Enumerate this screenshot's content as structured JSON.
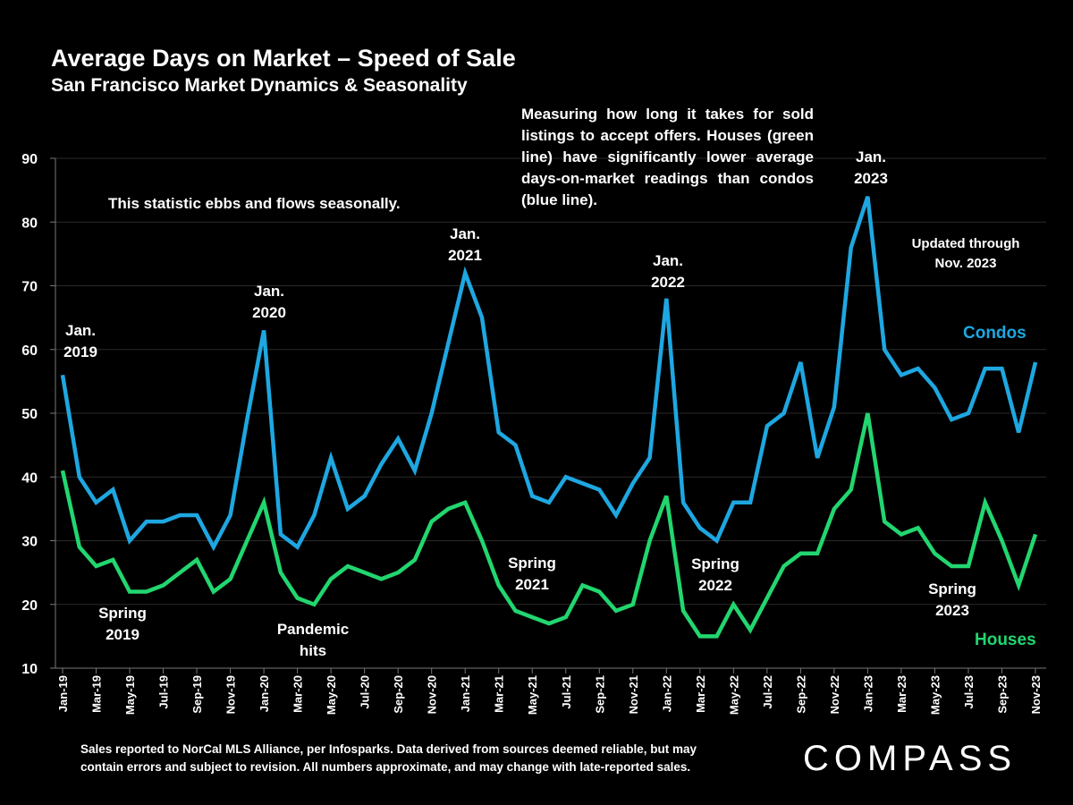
{
  "header": {
    "title": "Average Days on Market – Speed of Sale",
    "subtitle": "San Francisco Market Dynamics & Seasonality"
  },
  "description": "Measuring how long it takes for sold listings to accept offers. Houses (green line) have significantly lower average days-on-market readings than condos (blue line).",
  "annotations": {
    "seasonal": "This statistic ebbs and flows seasonally.",
    "jan2019": [
      "Jan.",
      "2019"
    ],
    "jan2020": [
      "Jan.",
      "2020"
    ],
    "jan2021": [
      "Jan.",
      "2021"
    ],
    "jan2022": [
      "Jan.",
      "2022"
    ],
    "jan2023": [
      "Jan.",
      "2023"
    ],
    "spring2019": [
      "Spring",
      "2019"
    ],
    "pandemic": [
      "Pandemic",
      "hits"
    ],
    "spring2021": [
      "Spring",
      "2021"
    ],
    "spring2022": [
      "Spring",
      "2022"
    ],
    "spring2023": [
      "Spring",
      "2023"
    ],
    "updated": [
      "Updated through",
      "Nov. 2023"
    ]
  },
  "footer": {
    "line1": "Sales reported to NorCal MLS Alliance, per Infosparks. Data derived from sources deemed reliable, but may",
    "line2": "contain errors and subject to revision. All numbers approximate, and may change with late-reported sales."
  },
  "logo": "COMPASS",
  "chart_data": {
    "type": "line",
    "title": "Average Days on Market – Speed of Sale",
    "xlabel": "",
    "ylabel": "",
    "ylim": [
      10,
      90
    ],
    "yticks": [
      10,
      20,
      30,
      40,
      50,
      60,
      70,
      80,
      90
    ],
    "grid": true,
    "legend": "right (inline labels)",
    "x": [
      "Jan-19",
      "Feb-19",
      "Mar-19",
      "Apr-19",
      "May-19",
      "Jun-19",
      "Jul-19",
      "Aug-19",
      "Sep-19",
      "Oct-19",
      "Nov-19",
      "Dec-19",
      "Jan-20",
      "Feb-20",
      "Mar-20",
      "Apr-20",
      "May-20",
      "Jun-20",
      "Jul-20",
      "Aug-20",
      "Sep-20",
      "Oct-20",
      "Nov-20",
      "Dec-20",
      "Jan-21",
      "Feb-21",
      "Mar-21",
      "Apr-21",
      "May-21",
      "Jun-21",
      "Jul-21",
      "Aug-21",
      "Sep-21",
      "Oct-21",
      "Nov-21",
      "Dec-21",
      "Jan-22",
      "Feb-22",
      "Mar-22",
      "Apr-22",
      "May-22",
      "Jun-22",
      "Jul-22",
      "Aug-22",
      "Sep-22",
      "Oct-22",
      "Nov-22",
      "Dec-22",
      "Jan-23",
      "Feb-23",
      "Mar-23",
      "Apr-23",
      "May-23",
      "Jun-23",
      "Jul-23",
      "Aug-23",
      "Sep-23",
      "Oct-23",
      "Nov-23"
    ],
    "xtick_labels": [
      "Jan-19",
      "Mar-19",
      "May-19",
      "Jul-19",
      "Sep-19",
      "Nov-19",
      "Jan-20",
      "Mar-20",
      "May-20",
      "Jul-20",
      "Sep-20",
      "Nov-20",
      "Jan-21",
      "Mar-21",
      "May-21",
      "Jul-21",
      "Sep-21",
      "Nov-21",
      "Jan-22",
      "Mar-22",
      "May-22",
      "Jul-22",
      "Sep-22",
      "Nov-22",
      "Jan-23",
      "Mar-23",
      "May-23",
      "Jul-23",
      "Sep-23",
      "Nov-23"
    ],
    "series": [
      {
        "name": "Condos",
        "color": "#1ea7e1",
        "values": [
          56,
          40,
          36,
          38,
          30,
          33,
          33,
          34,
          34,
          29,
          34,
          49,
          63,
          31,
          29,
          34,
          43,
          35,
          37,
          42,
          46,
          41,
          50,
          61,
          72,
          65,
          47,
          45,
          37,
          36,
          40,
          39,
          38,
          34,
          39,
          43,
          68,
          36,
          32,
          30,
          36,
          36,
          48,
          50,
          58,
          43,
          51,
          76,
          84,
          60,
          56,
          57,
          54,
          49,
          50,
          57,
          57,
          47,
          58
        ]
      },
      {
        "name": "Houses",
        "color": "#22d66f",
        "values": [
          41,
          29,
          26,
          27,
          22,
          22,
          23,
          25,
          27,
          22,
          24,
          30,
          36,
          25,
          21,
          20,
          24,
          26,
          25,
          24,
          25,
          27,
          33,
          35,
          36,
          30,
          23,
          19,
          18,
          17,
          18,
          23,
          22,
          19,
          20,
          30,
          37,
          19,
          15,
          15,
          20,
          16,
          21,
          26,
          28,
          28,
          35,
          38,
          50,
          33,
          31,
          32,
          28,
          26,
          26,
          36,
          30,
          23,
          31
        ]
      }
    ]
  }
}
